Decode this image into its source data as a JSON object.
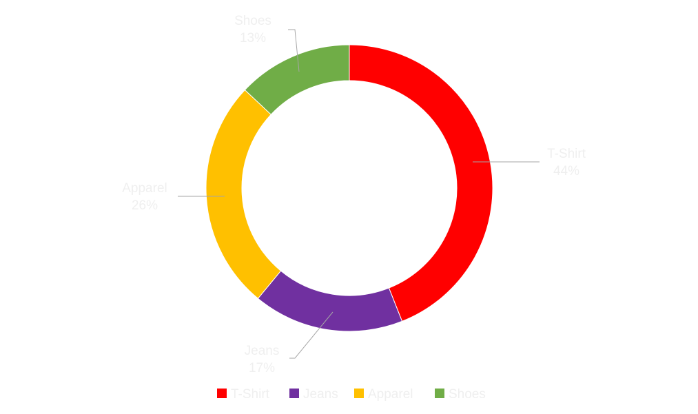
{
  "chart_data": {
    "type": "pie",
    "variant": "doughnut",
    "title": "",
    "categories": [
      "T-Shirt",
      "Jeans",
      "Apparel",
      "Shoes"
    ],
    "values": [
      44,
      17,
      26,
      13
    ],
    "data_labels": [
      "44%",
      "17%",
      "26%",
      "13%"
    ],
    "colors": [
      "#ff0000",
      "#7030a0",
      "#ffc000",
      "#70ad47"
    ],
    "legend": {
      "placement": "bottom",
      "entries": [
        "T-Shirt",
        "Jeans",
        "Apparel",
        "Shoes"
      ]
    },
    "label_color": "#efefef"
  }
}
